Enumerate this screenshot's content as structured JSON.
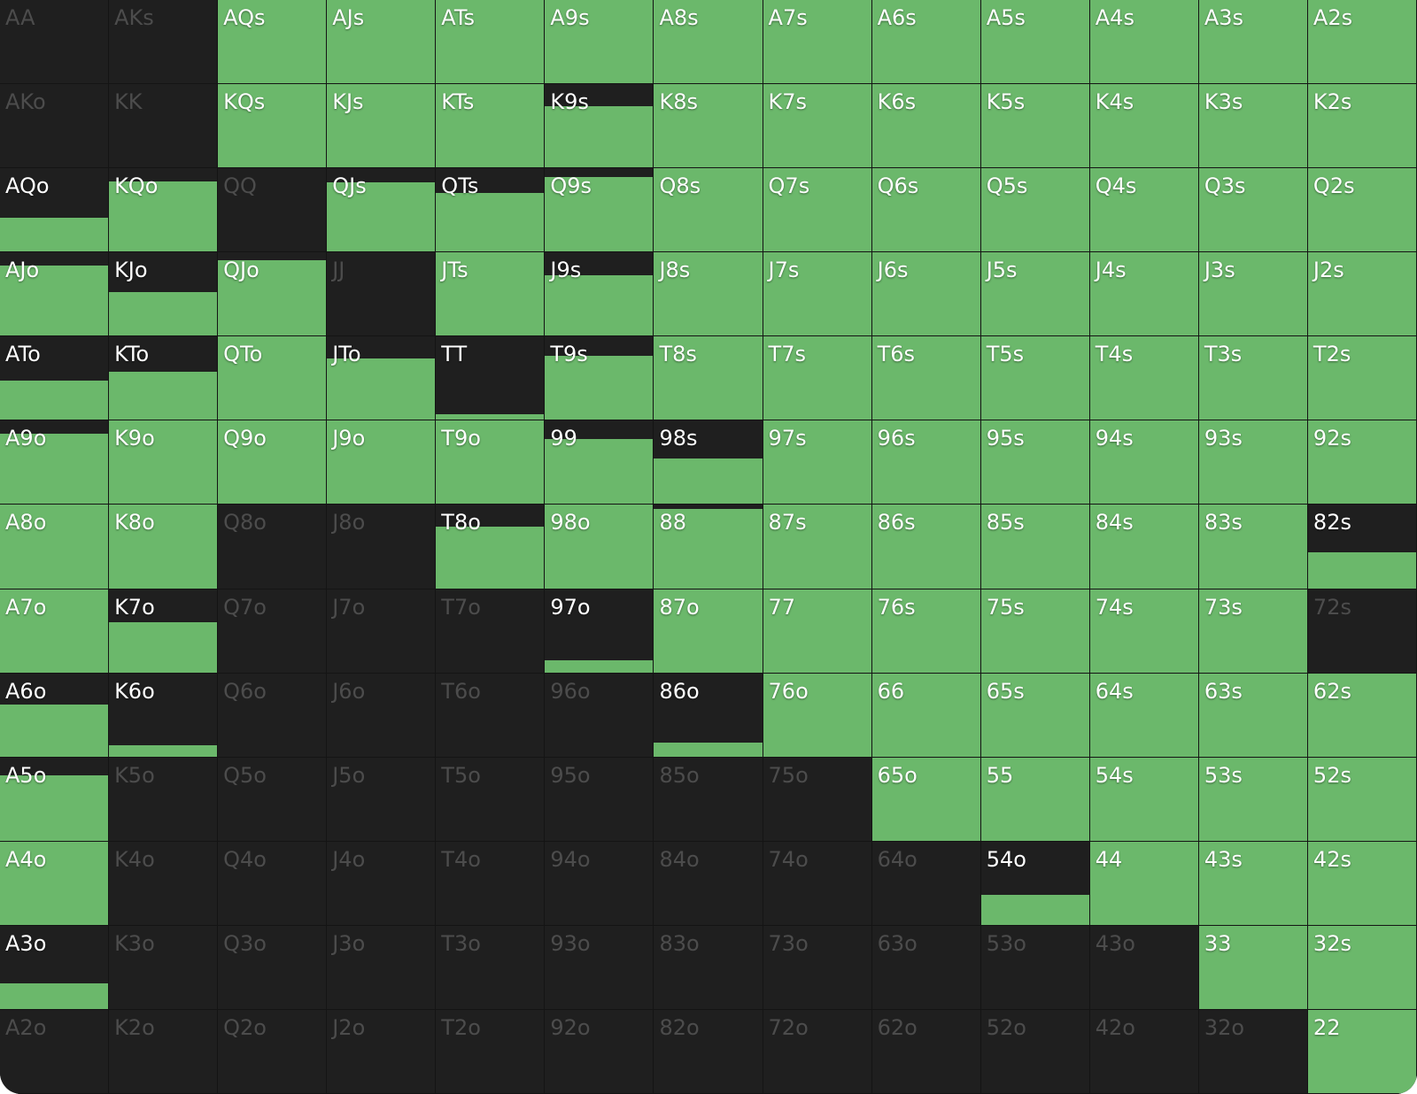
{
  "colors": {
    "played": "#6bb86b",
    "folded": "#1f1f1f",
    "label": "#ffffff",
    "label_dim": "#4c4c4c"
  },
  "matrix": {
    "rows": [
      [
        {
          "hand": "AA",
          "freq": 0
        },
        {
          "hand": "AKs",
          "freq": 0
        },
        {
          "hand": "AQs",
          "freq": 1
        },
        {
          "hand": "AJs",
          "freq": 1
        },
        {
          "hand": "ATs",
          "freq": 1
        },
        {
          "hand": "A9s",
          "freq": 1
        },
        {
          "hand": "A8s",
          "freq": 1
        },
        {
          "hand": "A7s",
          "freq": 1
        },
        {
          "hand": "A6s",
          "freq": 1
        },
        {
          "hand": "A5s",
          "freq": 1
        },
        {
          "hand": "A4s",
          "freq": 1
        },
        {
          "hand": "A3s",
          "freq": 1
        },
        {
          "hand": "A2s",
          "freq": 1
        }
      ],
      [
        {
          "hand": "AKo",
          "freq": 0
        },
        {
          "hand": "KK",
          "freq": 0
        },
        {
          "hand": "KQs",
          "freq": 1
        },
        {
          "hand": "KJs",
          "freq": 1
        },
        {
          "hand": "KTs",
          "freq": 1
        },
        {
          "hand": "K9s",
          "freq": 0.74
        },
        {
          "hand": "K8s",
          "freq": 1
        },
        {
          "hand": "K7s",
          "freq": 1
        },
        {
          "hand": "K6s",
          "freq": 1
        },
        {
          "hand": "K5s",
          "freq": 1
        },
        {
          "hand": "K4s",
          "freq": 1
        },
        {
          "hand": "K3s",
          "freq": 1
        },
        {
          "hand": "K2s",
          "freq": 1
        }
      ],
      [
        {
          "hand": "AQo",
          "freq": 0.41
        },
        {
          "hand": "KQo",
          "freq": 0.84
        },
        {
          "hand": "QQ",
          "freq": 0
        },
        {
          "hand": "QJs",
          "freq": 0.83
        },
        {
          "hand": "QTs",
          "freq": 0.7
        },
        {
          "hand": "Q9s",
          "freq": 0.9
        },
        {
          "hand": "Q8s",
          "freq": 1
        },
        {
          "hand": "Q7s",
          "freq": 1
        },
        {
          "hand": "Q6s",
          "freq": 1
        },
        {
          "hand": "Q5s",
          "freq": 1
        },
        {
          "hand": "Q4s",
          "freq": 1
        },
        {
          "hand": "Q3s",
          "freq": 1
        },
        {
          "hand": "Q2s",
          "freq": 1
        }
      ],
      [
        {
          "hand": "AJo",
          "freq": 0.84
        },
        {
          "hand": "KJo",
          "freq": 0.52
        },
        {
          "hand": "QJo",
          "freq": 0.91
        },
        {
          "hand": "JJ",
          "freq": 0
        },
        {
          "hand": "JTs",
          "freq": 1
        },
        {
          "hand": "J9s",
          "freq": 0.73
        },
        {
          "hand": "J8s",
          "freq": 1
        },
        {
          "hand": "J7s",
          "freq": 1
        },
        {
          "hand": "J6s",
          "freq": 1
        },
        {
          "hand": "J5s",
          "freq": 1
        },
        {
          "hand": "J4s",
          "freq": 1
        },
        {
          "hand": "J3s",
          "freq": 1
        },
        {
          "hand": "J2s",
          "freq": 1
        }
      ],
      [
        {
          "hand": "ATo",
          "freq": 0.47
        },
        {
          "hand": "KTo",
          "freq": 0.58
        },
        {
          "hand": "QTo",
          "freq": 1
        },
        {
          "hand": "JTo",
          "freq": 0.74
        },
        {
          "hand": "TT",
          "freq": 0.07
        },
        {
          "hand": "T9s",
          "freq": 0.77
        },
        {
          "hand": "T8s",
          "freq": 1
        },
        {
          "hand": "T7s",
          "freq": 1
        },
        {
          "hand": "T6s",
          "freq": 1
        },
        {
          "hand": "T5s",
          "freq": 1
        },
        {
          "hand": "T4s",
          "freq": 1
        },
        {
          "hand": "T3s",
          "freq": 1
        },
        {
          "hand": "T2s",
          "freq": 1
        }
      ],
      [
        {
          "hand": "A9o",
          "freq": 0.85
        },
        {
          "hand": "K9o",
          "freq": 1
        },
        {
          "hand": "Q9o",
          "freq": 1
        },
        {
          "hand": "J9o",
          "freq": 1
        },
        {
          "hand": "T9o",
          "freq": 1
        },
        {
          "hand": "99",
          "freq": 0.78
        },
        {
          "hand": "98s",
          "freq": 0.55
        },
        {
          "hand": "97s",
          "freq": 1
        },
        {
          "hand": "96s",
          "freq": 1
        },
        {
          "hand": "95s",
          "freq": 1
        },
        {
          "hand": "94s",
          "freq": 1
        },
        {
          "hand": "93s",
          "freq": 1
        },
        {
          "hand": "92s",
          "freq": 1
        }
      ],
      [
        {
          "hand": "A8o",
          "freq": 1
        },
        {
          "hand": "K8o",
          "freq": 1
        },
        {
          "hand": "Q8o",
          "freq": 0
        },
        {
          "hand": "J8o",
          "freq": 0
        },
        {
          "hand": "T8o",
          "freq": 0.74
        },
        {
          "hand": "98o",
          "freq": 1
        },
        {
          "hand": "88",
          "freq": 0.95
        },
        {
          "hand": "87s",
          "freq": 1
        },
        {
          "hand": "86s",
          "freq": 1
        },
        {
          "hand": "85s",
          "freq": 1
        },
        {
          "hand": "84s",
          "freq": 1
        },
        {
          "hand": "83s",
          "freq": 1
        },
        {
          "hand": "82s",
          "freq": 0.43
        }
      ],
      [
        {
          "hand": "A7o",
          "freq": 1
        },
        {
          "hand": "K7o",
          "freq": 0.6
        },
        {
          "hand": "Q7o",
          "freq": 0
        },
        {
          "hand": "J7o",
          "freq": 0
        },
        {
          "hand": "T7o",
          "freq": 0
        },
        {
          "hand": "97o",
          "freq": 0.15
        },
        {
          "hand": "87o",
          "freq": 1
        },
        {
          "hand": "77",
          "freq": 1
        },
        {
          "hand": "76s",
          "freq": 1
        },
        {
          "hand": "75s",
          "freq": 1
        },
        {
          "hand": "74s",
          "freq": 1
        },
        {
          "hand": "73s",
          "freq": 1
        },
        {
          "hand": "72s",
          "freq": 0
        }
      ],
      [
        {
          "hand": "A6o",
          "freq": 0.62
        },
        {
          "hand": "K6o",
          "freq": 0.14
        },
        {
          "hand": "Q6o",
          "freq": 0
        },
        {
          "hand": "J6o",
          "freq": 0
        },
        {
          "hand": "T6o",
          "freq": 0
        },
        {
          "hand": "96o",
          "freq": 0
        },
        {
          "hand": "86o",
          "freq": 0.17
        },
        {
          "hand": "76o",
          "freq": 1
        },
        {
          "hand": "66",
          "freq": 1
        },
        {
          "hand": "65s",
          "freq": 1
        },
        {
          "hand": "64s",
          "freq": 1
        },
        {
          "hand": "63s",
          "freq": 1
        },
        {
          "hand": "62s",
          "freq": 1
        }
      ],
      [
        {
          "hand": "A5o",
          "freq": 0.78
        },
        {
          "hand": "K5o",
          "freq": 0
        },
        {
          "hand": "Q5o",
          "freq": 0
        },
        {
          "hand": "J5o",
          "freq": 0
        },
        {
          "hand": "T5o",
          "freq": 0
        },
        {
          "hand": "95o",
          "freq": 0
        },
        {
          "hand": "85o",
          "freq": 0
        },
        {
          "hand": "75o",
          "freq": 0
        },
        {
          "hand": "65o",
          "freq": 1
        },
        {
          "hand": "55",
          "freq": 1
        },
        {
          "hand": "54s",
          "freq": 1
        },
        {
          "hand": "53s",
          "freq": 1
        },
        {
          "hand": "52s",
          "freq": 1
        }
      ],
      [
        {
          "hand": "A4o",
          "freq": 1
        },
        {
          "hand": "K4o",
          "freq": 0
        },
        {
          "hand": "Q4o",
          "freq": 0
        },
        {
          "hand": "J4o",
          "freq": 0
        },
        {
          "hand": "T4o",
          "freq": 0
        },
        {
          "hand": "94o",
          "freq": 0
        },
        {
          "hand": "84o",
          "freq": 0
        },
        {
          "hand": "74o",
          "freq": 0
        },
        {
          "hand": "64o",
          "freq": 0
        },
        {
          "hand": "54o",
          "freq": 0.36
        },
        {
          "hand": "44",
          "freq": 1
        },
        {
          "hand": "43s",
          "freq": 1
        },
        {
          "hand": "42s",
          "freq": 1
        }
      ],
      [
        {
          "hand": "A3o",
          "freq": 0.31
        },
        {
          "hand": "K3o",
          "freq": 0
        },
        {
          "hand": "Q3o",
          "freq": 0
        },
        {
          "hand": "J3o",
          "freq": 0
        },
        {
          "hand": "T3o",
          "freq": 0
        },
        {
          "hand": "93o",
          "freq": 0
        },
        {
          "hand": "83o",
          "freq": 0
        },
        {
          "hand": "73o",
          "freq": 0
        },
        {
          "hand": "63o",
          "freq": 0
        },
        {
          "hand": "53o",
          "freq": 0
        },
        {
          "hand": "43o",
          "freq": 0
        },
        {
          "hand": "33",
          "freq": 1
        },
        {
          "hand": "32s",
          "freq": 1
        }
      ],
      [
        {
          "hand": "A2o",
          "freq": 0
        },
        {
          "hand": "K2o",
          "freq": 0
        },
        {
          "hand": "Q2o",
          "freq": 0
        },
        {
          "hand": "J2o",
          "freq": 0
        },
        {
          "hand": "T2o",
          "freq": 0
        },
        {
          "hand": "92o",
          "freq": 0
        },
        {
          "hand": "82o",
          "freq": 0
        },
        {
          "hand": "72o",
          "freq": 0
        },
        {
          "hand": "62o",
          "freq": 0
        },
        {
          "hand": "52o",
          "freq": 0
        },
        {
          "hand": "42o",
          "freq": 0
        },
        {
          "hand": "32o",
          "freq": 0
        },
        {
          "hand": "22",
          "freq": 1
        }
      ]
    ]
  }
}
